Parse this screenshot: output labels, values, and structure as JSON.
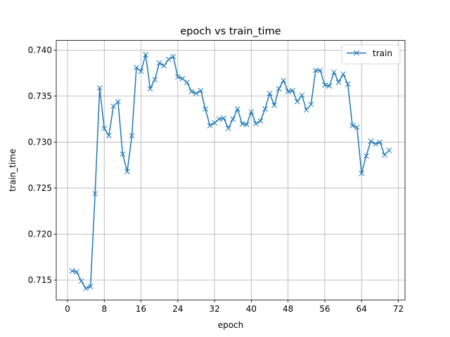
{
  "chart_data": {
    "type": "line",
    "title": "epoch vs train_time",
    "xlabel": "epoch",
    "ylabel": "train_time",
    "xlim": [
      -2.45,
      73.45
    ],
    "ylim": [
      0.71285,
      0.74105
    ],
    "xticks": [
      0,
      8,
      16,
      24,
      32,
      40,
      48,
      56,
      64,
      72
    ],
    "yticks": [
      0.715,
      0.72,
      0.725,
      0.73,
      0.735,
      0.74
    ],
    "ytick_labels": [
      "0.715",
      "0.720",
      "0.725",
      "0.730",
      "0.735",
      "0.740"
    ],
    "grid": true,
    "legend_position": "upper right",
    "colors": {
      "series": "#1f77b4",
      "grid": "#b0b0b0"
    },
    "series": [
      {
        "name": "train",
        "marker": "x",
        "x": [
          1,
          2,
          3,
          4,
          5,
          6,
          7,
          8,
          9,
          10,
          11,
          12,
          13,
          14,
          15,
          16,
          17,
          18,
          19,
          20,
          21,
          22,
          23,
          24,
          25,
          26,
          27,
          28,
          29,
          30,
          31,
          32,
          33,
          34,
          35,
          36,
          37,
          38,
          39,
          40,
          41,
          42,
          43,
          44,
          45,
          46,
          47,
          48,
          49,
          50,
          51,
          52,
          53,
          54,
          55,
          56,
          57,
          58,
          59,
          60,
          61,
          62,
          63,
          64,
          65,
          66,
          67,
          68,
          69,
          70
        ],
        "y": [
          0.716,
          0.7159,
          0.7149,
          0.7141,
          0.7143,
          0.7244,
          0.7359,
          0.7315,
          0.7307,
          0.7339,
          0.7344,
          0.7287,
          0.7268,
          0.7307,
          0.7381,
          0.7377,
          0.7395,
          0.7358,
          0.7368,
          0.7386,
          0.7383,
          0.739,
          0.7393,
          0.7371,
          0.7369,
          0.7365,
          0.7355,
          0.7353,
          0.7356,
          0.7336,
          0.7318,
          0.7321,
          0.7325,
          0.7326,
          0.7315,
          0.7325,
          0.7336,
          0.732,
          0.7319,
          0.7333,
          0.732,
          0.7323,
          0.7336,
          0.7353,
          0.734,
          0.7358,
          0.7367,
          0.7355,
          0.7356,
          0.7344,
          0.7351,
          0.7335,
          0.7341,
          0.7378,
          0.7378,
          0.7362,
          0.7361,
          0.7376,
          0.7365,
          0.7374,
          0.7363,
          0.7318,
          0.7316,
          0.7266,
          0.7285,
          0.7301,
          0.7298,
          0.73,
          0.7286,
          0.7291
        ]
      }
    ]
  }
}
